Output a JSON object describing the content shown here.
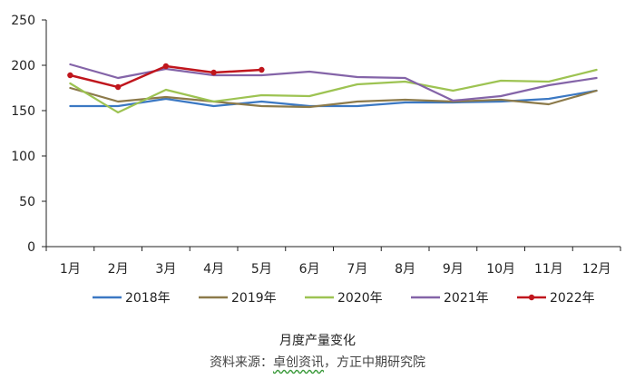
{
  "chart_data": {
    "type": "line",
    "title": "",
    "xlabel": "",
    "ylabel": "",
    "categories": [
      "1月",
      "2月",
      "3月",
      "4月",
      "5月",
      "6月",
      "7月",
      "8月",
      "9月",
      "10月",
      "11月",
      "12月"
    ],
    "ylim": [
      0,
      250
    ],
    "yticks": [
      0,
      50,
      100,
      150,
      200,
      250
    ],
    "grid": false,
    "legend": "bottom",
    "series": [
      {
        "name": "2018年",
        "color": "#3b78c3",
        "marker": false,
        "values": [
          155,
          155,
          163,
          155,
          160,
          155,
          155,
          159,
          159,
          160,
          163,
          172
        ]
      },
      {
        "name": "2019年",
        "color": "#8c7a4a",
        "marker": false,
        "values": [
          175,
          160,
          165,
          160,
          155,
          154,
          160,
          162,
          160,
          162,
          157,
          172
        ]
      },
      {
        "name": "2020年",
        "color": "#9dc352",
        "marker": false,
        "values": [
          180,
          148,
          173,
          160,
          167,
          166,
          179,
          182,
          172,
          183,
          182,
          195
        ]
      },
      {
        "name": "2021年",
        "color": "#8464a8",
        "marker": false,
        "values": [
          201,
          186,
          196,
          189,
          189,
          193,
          187,
          186,
          161,
          166,
          178,
          186
        ]
      },
      {
        "name": "2022年",
        "color": "#c0161d",
        "marker": true,
        "values": [
          189,
          176,
          199,
          192,
          195,
          null,
          null,
          null,
          null,
          null,
          null,
          null
        ]
      }
    ]
  },
  "caption": {
    "title": "月度产量变化",
    "source_prefix": "资料来源：",
    "source_underlined": "卓创资讯",
    "source_suffix": "，方正中期研究院"
  }
}
